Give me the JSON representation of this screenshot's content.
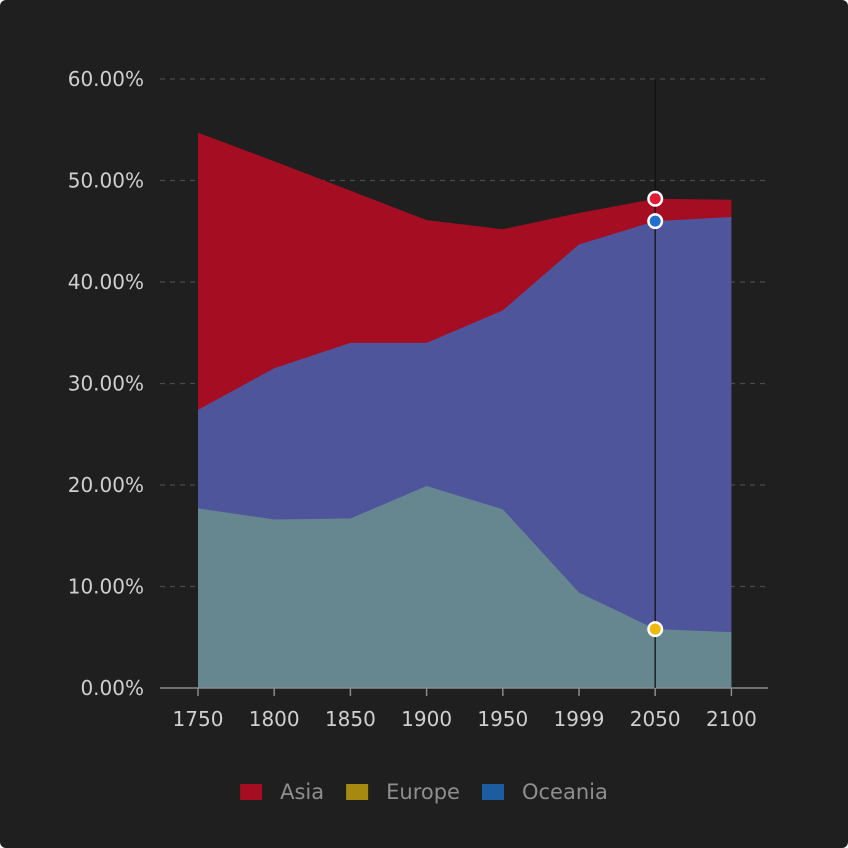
{
  "chart_data": {
    "type": "area",
    "stacked": false,
    "categories": [
      "1750",
      "1800",
      "1850",
      "1900",
      "1950",
      "1999",
      "2050",
      "2100"
    ],
    "y_axis": {
      "min": 0,
      "max": 60,
      "ticks": [
        "0.00%",
        "10.00%",
        "20.00%",
        "30.00%",
        "40.00%",
        "50.00%",
        "60.00%"
      ],
      "grid": true,
      "grid_style": "dashed"
    },
    "series": [
      {
        "name": "Asia",
        "color": "#a50e22",
        "values": [
          54.7,
          51.9,
          49.0,
          46.1,
          45.2,
          46.8,
          48.2,
          48.1
        ]
      },
      {
        "name": "Oceania",
        "color": "#4f559b",
        "values": [
          27.4,
          31.5,
          34.0,
          34.0,
          37.2,
          43.7,
          46.0,
          46.4
        ]
      },
      {
        "name": "Europe",
        "color": "#678790",
        "values": [
          17.7,
          16.6,
          16.7,
          19.9,
          17.6,
          9.4,
          5.8,
          5.5
        ]
      }
    ],
    "legend": {
      "position": "bottom",
      "items": [
        {
          "name": "Asia",
          "color": "#a50e22"
        },
        {
          "name": "Europe",
          "color": "#a58a0f"
        },
        {
          "name": "Oceania",
          "color": "#1d5c9e"
        }
      ]
    },
    "tooltip_category": "2050",
    "hover_markers": [
      {
        "series": "Asia",
        "value": 48.2,
        "color": "#e01b33"
      },
      {
        "series": "Oceania",
        "value": 46.0,
        "color": "#1f6fd0"
      },
      {
        "series": "Europe",
        "value": 5.8,
        "color": "#f0b80a"
      }
    ]
  }
}
